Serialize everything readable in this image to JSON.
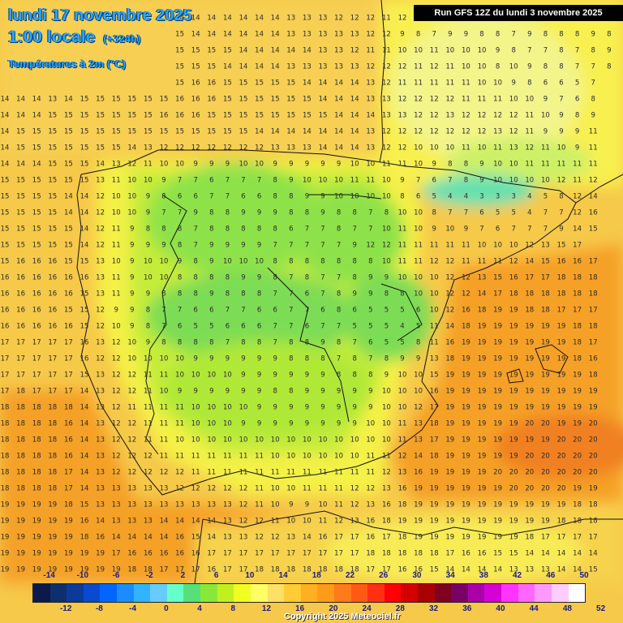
{
  "header": {
    "date_line": "lundi 17 novembre 2025",
    "time_line": "1:00 locale",
    "lead_time": "(+324h)",
    "variable": "Températures à 2m (°C)",
    "run_info": "Run GFS 12Z du lundi 3 novembre 2025"
  },
  "legend": {
    "top_labels": [
      "-14",
      "-10",
      "-6",
      "-2",
      "2",
      "6",
      "10",
      "14",
      "18",
      "22",
      "26",
      "30",
      "34",
      "38",
      "42",
      "46",
      "50"
    ],
    "bottom_labels": [
      "-12",
      "-8",
      "-4",
      "0",
      "4",
      "8",
      "12",
      "16",
      "20",
      "24",
      "28",
      "32",
      "36",
      "40",
      "44",
      "48",
      "52"
    ],
    "colors": [
      "#0b1a4a",
      "#0d2f6e",
      "#0a3a9a",
      "#0a4ad0",
      "#0066ff",
      "#1a8cff",
      "#33b2ff",
      "#66ccff",
      "#66ffcc",
      "#55e07a",
      "#88e83a",
      "#c0f020",
      "#f0ff20",
      "#ffff66",
      "#ffe066",
      "#ffcc33",
      "#ffb020",
      "#ff9a1a",
      "#ff7a1a",
      "#ff5a14",
      "#ff3010",
      "#ff0000",
      "#d40000",
      "#aa0000",
      "#800020",
      "#7a0066",
      "#aa00aa",
      "#d400d4",
      "#ff33ff",
      "#ff66ff",
      "#ff99ff",
      "#ffccff",
      "#ffffff"
    ]
  },
  "copyright": "Copyright 2025 Meteociel.fr",
  "temperature_grid": {
    "rows": [
      "14 14 14 14 15 15 15 15 15 15 15 14 14 14 14 14 14 14 13 13 13 12 12 12 11 12 11 10 10 10 10 10 9 8 8 8 7 7 8",
      "14 15 15 15 15 15 15 15 15 15 15 15 14 14 14 14 14 14 13 13 13 13 13 12 12 9 8 7 9 9 8 8 7 9 8 8 8 9 8",
      "14 14 14 14 14 15 15 15 15 15 15 15 15 15 15 14 14 14 14 14 13 13 12 11 11 10 10 11 10 10 10 9 8 7 7 8 7 8 9",
      "14 14 14 14 14 14 15 15 15 15 15 15 15 15 14 14 14 14 13 13 13 13 13 12 12 12 11 12 11 10 10 8 10 9 8 8 7 7 8",
      "14 14 14 14 14 15 15 15 15 15 15 15 16 16 15 15 15 15 15 14 14 14 14 13 12 11 11 11 11 11 10 10 9 8 6 6 5 7",
      "14 14 14 13 14 15 15 15 15 15 15 16 16 16 15 15 15 15 15 15 14 14 14 13 13 12 12 12 12 11 11 11 10 10 9 7 6 8",
      "14 14 14 15 15 15 15 15 15 15 16 16 16 15 15 15 15 15 15 15 15 14 14 14 13 13 12 12 13 12 12 12 12 11 10 9 8 9",
      "14 15 15 15 15 15 15 15 15 15 15 15 15 15 15 15 14 14 14 14 14 14 14 13 12 12 12 12 12 12 12 13 12 11 9 9 9 11",
      "14 15 15 15 15 15 15 15 14 13 12 12 12 12 12 12 12 13 13 13 14 14 14 13 12 12 10 10 10 11 10 11 13 12 11 10 9 11",
      "14 14 14 15 15 15 14 13 12 11 10 10 9 9 9 10 10 9 9 9 9 9 10 10 11 11 10 9 8 8 9 10 10 11 11 11 11 11",
      "15 15 15 15 15 15 13 11 10 10 9 7 7 6 7 7 7 8 9 10 10 10 11 11 10 9 7 6 7 8 9 10 10 10 10 12 11 12",
      "15 15 15 15 14 14 12 10 10 9 8 6 6 7 7 6 6 8 8 9 9 10 10 10 10 8 6 5 4 4 3 3 3 4 5 8 12 14",
      "15 15 15 15 14 14 12 10 10 9 7 7 9 8 8 9 9 9 8 8 9 8 8 7 8 10 10 8 7 7 6 5 5 4 7 7 12 16",
      "15 15 15 15 15 14 12 11 9 8 8 8 7 8 8 8 8 8 6 7 7 8 7 7 10 11 10 9 10 9 7 6 7 7 7 9 14 15",
      "15 15 15 15 15 14 12 11 9 9 9 8 7 9 9 9 9 7 7 7 7 7 9 12 12 11 11 11 11 11 10 10 10 12 13 15 17",
      "15 16 16 16 15 15 13 10 9 10 10 9 8 9 10 10 10 8 8 8 8 8 8 8 10 11 11 12 12 11 11 11 12 14 15 16 16 17",
      "16 16 16 16 16 16 13 11 9 10 10 8 8 8 8 9 9 8 7 8 7 7 8 9 9 10 10 10 12 12 13 15 16 17 17 18 18 18",
      "16 16 16 16 16 15 13 11 9 9 8 8 8 9 8 8 8 7 7 6 7 8 9 9 8 8 10 10 12 12 14 17 18 18 18 18 18 18",
      "16 16 16 16 15 15 12 9 9 8 7 7 6 6 7 7 6 6 7 7 6 8 6 5 5 5 6 10 12 16 18 19 19 18 18 17 17 17",
      "16 16 16 16 16 15 12 10 9 8 7 6 5 5 6 6 6 7 7 6 7 7 5 5 5 4 5 11 14 18 19 19 19 19 19 19 18 18",
      "17 17 17 17 17 16 13 12 10 9 8 8 8 8 7 8 8 7 8 8 9 8 7 6 5 5 8 11 16 19 19 19 19 19 19 19 18 17",
      "17 17 17 17 17 16 12 12 10 10 10 10 9 9 9 9 9 9 8 8 8 7 8 7 8 9 9 13 18 19 19 19 19 19 19 19 18 16",
      "17 17 17 17 17 15 13 12 12 11 11 10 10 10 10 9 9 9 9 9 9 8 8 8 9 10 10 15 19 19 19 19 19 19 19 19 19 18",
      "17 18 17 17 17 14 13 12 12 11 10 9 9 9 9 9 9 8 8 9 9 9 9 9 10 10 10 16 19 19 19 19 19 19 19 19 19 19",
      "18 18 18 18 18 14 13 12 11 11 11 11 10 10 10 10 9 9 9 9 9 9 9 9 10 10 12 17 19 19 19 19 19 19 19 19 19 19",
      "18 18 18 18 16 14 13 12 12 11 11 11 10 10 10 9 9 9 9 9 9 9 9 10 10 11 13 18 19 19 19 19 19 20 20 19 19 20",
      "18 18 18 18 16 14 13 12 12 11 11 10 10 10 10 10 10 10 10 10 10 10 10 10 10 11 13 17 19 19 19 19 19 19 19 20 20 20",
      "18 18 18 18 16 14 13 12 12 12 11 11 11 11 11 11 11 10 10 10 10 10 10 11 11 12 14 18 19 19 19 19 19 20 20 20 20 20",
      "18 18 18 18 17 14 13 12 12 12 12 12 11 11 11 11 11 11 11 11 11 11 11 11 12 13 16 19 19 19 19 20 20 20 20 20 20 20",
      "18 18 18 18 17 14 13 13 13 13 13 12 12 12 12 12 11 10 10 11 11 11 12 12 13 16 19 19 19 19 19 19 20 20 20 20 19 19",
      "19 19 19 19 18 15 13 13 13 13 13 13 13 13 13 12 11 10 9 9 10 11 12 13 16 18 19 19 19 19 19 19 19 19 19 19 18 18",
      "19 19 19 19 19 16 14 13 13 13 14 14 14 14 13 12 12 11 10 10 11 12 13 16 18 19 19 19 19 19 19 19 19 19 19 18 18 18",
      "19 19 19 19 19 18 16 14 14 14 14 16 15 14 13 13 12 12 13 14 16 17 17 16 17 18 19 19 19 19 19 19 19 18 17 17 17 17",
      "19 19 19 19 19 19 19 17 16 16 16 16 16 17 17 17 17 17 17 17 17 17 17 18 18 18 18 18 17 16 16 15 15 14 14 14 14 14",
      "19 19 19 19 19 19 19 19 18 18 17 17 17 16 17 17 18 18 18 18 18 18 18 17 17 16 16 15 14 14 14 14 13 13 13 14 14 15",
      "19 19 19 19 19 19 19 19 19 19 19 19 18 17 17 17 18 18 18 18 18 17 16 15 15 14 13 13 13 13 13 13 13 14 15 15 15 15",
      "19 19 19 19 19 19 19 19 19 19 19 19 19 18 18 18 18 18 18 17 16 15 14 13 12 12 12 12 12 12 12 13 14 14 15 15 15 15",
      "19 19 19 19 19 19 19 19 19 19 19 19 19 19 19 18 18 18 18 17 15 14 13 12 12 12 12 12 12 12 12 13 14 14 15 15 15 15"
    ]
  }
}
